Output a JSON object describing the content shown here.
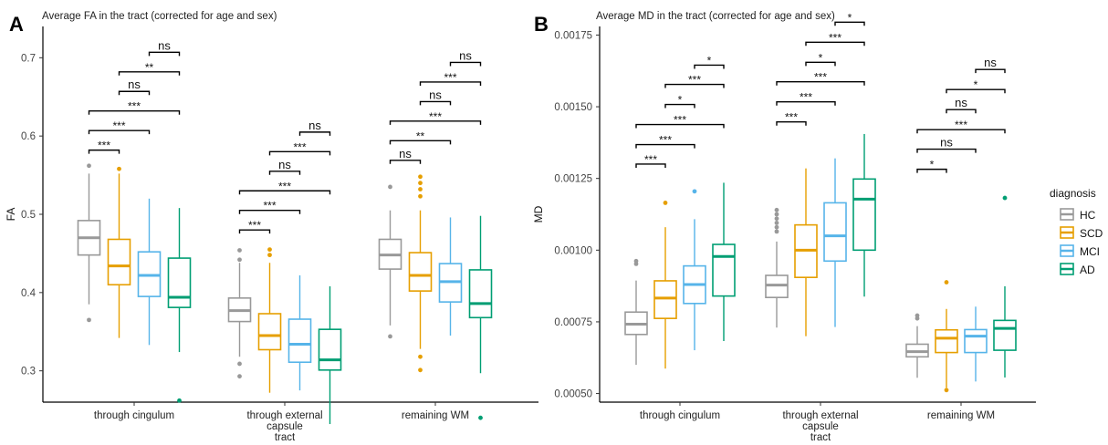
{
  "colors": {
    "HC": "#999999",
    "SCD": "#E69F00",
    "MCI": "#56B4E9",
    "AD": "#009E73"
  },
  "legend": {
    "title": "diagnosis",
    "entries": [
      "HC",
      "SCD",
      "MCI",
      "AD"
    ]
  },
  "chart_data": [
    {
      "type": "box",
      "panel": "A",
      "title": "Average FA in the tract (corrected for age and sex)",
      "ylabel": "FA",
      "xlabel": "",
      "ylim": [
        0.26,
        0.74
      ],
      "yticks": [
        0.3,
        0.4,
        0.5,
        0.6,
        0.7
      ],
      "ytick_labels": [
        "0.3",
        "0.4",
        "0.5",
        "0.6",
        "0.7"
      ],
      "categories": [
        [
          "through cingulum"
        ],
        [
          "through external",
          "capsule",
          "tract"
        ],
        [
          "remaining WM"
        ]
      ],
      "groups": [
        "HC",
        "SCD",
        "MCI",
        "AD"
      ],
      "boxes": [
        [
          {
            "group": "HC",
            "q1": 0.448,
            "med": 0.47,
            "q3": 0.492,
            "lo": 0.385,
            "hi": 0.552,
            "out": [
              0.562,
              0.365
            ]
          },
          {
            "group": "SCD",
            "q1": 0.41,
            "med": 0.434,
            "q3": 0.468,
            "lo": 0.342,
            "hi": 0.552,
            "out": [
              0.558
            ]
          },
          {
            "group": "MCI",
            "q1": 0.395,
            "med": 0.422,
            "q3": 0.452,
            "lo": 0.333,
            "hi": 0.52,
            "out": []
          },
          {
            "group": "AD",
            "q1": 0.381,
            "med": 0.394,
            "q3": 0.444,
            "lo": 0.324,
            "hi": 0.508,
            "out": [
              0.262
            ]
          }
        ],
        [
          {
            "group": "HC",
            "q1": 0.363,
            "med": 0.377,
            "q3": 0.393,
            "lo": 0.318,
            "hi": 0.438,
            "out": [
              0.454,
              0.442,
              0.309,
              0.293
            ]
          },
          {
            "group": "SCD",
            "q1": 0.327,
            "med": 0.345,
            "q3": 0.373,
            "lo": 0.272,
            "hi": 0.438,
            "out": [
              0.455,
              0.448
            ]
          },
          {
            "group": "MCI",
            "q1": 0.311,
            "med": 0.334,
            "q3": 0.366,
            "lo": 0.275,
            "hi": 0.422,
            "out": []
          },
          {
            "group": "AD",
            "q1": 0.301,
            "med": 0.314,
            "q3": 0.353,
            "lo": 0.232,
            "hi": 0.408,
            "out": []
          }
        ],
        [
          {
            "group": "HC",
            "q1": 0.43,
            "med": 0.448,
            "q3": 0.468,
            "lo": 0.358,
            "hi": 0.505,
            "out": [
              0.535,
              0.344
            ]
          },
          {
            "group": "SCD",
            "q1": 0.402,
            "med": 0.422,
            "q3": 0.451,
            "lo": 0.328,
            "hi": 0.505,
            "out": [
              0.548,
              0.54,
              0.532,
              0.523,
              0.318,
              0.301
            ]
          },
          {
            "group": "MCI",
            "q1": 0.388,
            "med": 0.414,
            "q3": 0.437,
            "lo": 0.345,
            "hi": 0.496,
            "out": []
          },
          {
            "group": "AD",
            "q1": 0.368,
            "med": 0.386,
            "q3": 0.429,
            "lo": 0.297,
            "hi": 0.498,
            "out": [
              0.24
            ]
          }
        ]
      ],
      "comparisons": [
        [
          {
            "from": 0,
            "to": 1,
            "label": "***",
            "y": 0.582
          },
          {
            "from": 0,
            "to": 2,
            "label": "***",
            "y": 0.607
          },
          {
            "from": 0,
            "to": 3,
            "label": "***",
            "y": 0.632
          },
          {
            "from": 1,
            "to": 2,
            "label": "ns",
            "y": 0.657
          },
          {
            "from": 1,
            "to": 3,
            "label": "**",
            "y": 0.682
          },
          {
            "from": 2,
            "to": 3,
            "label": "ns",
            "y": 0.707
          }
        ],
        [
          {
            "from": 0,
            "to": 1,
            "label": "***",
            "y": 0.48
          },
          {
            "from": 0,
            "to": 2,
            "label": "***",
            "y": 0.505
          },
          {
            "from": 0,
            "to": 3,
            "label": "***",
            "y": 0.53
          },
          {
            "from": 1,
            "to": 2,
            "label": "ns",
            "y": 0.555
          },
          {
            "from": 1,
            "to": 3,
            "label": "***",
            "y": 0.58
          },
          {
            "from": 2,
            "to": 3,
            "label": "ns",
            "y": 0.605
          }
        ],
        [
          {
            "from": 0,
            "to": 1,
            "label": "ns",
            "y": 0.569
          },
          {
            "from": 0,
            "to": 2,
            "label": "**",
            "y": 0.594
          },
          {
            "from": 0,
            "to": 3,
            "label": "***",
            "y": 0.619
          },
          {
            "from": 1,
            "to": 2,
            "label": "ns",
            "y": 0.644
          },
          {
            "from": 1,
            "to": 3,
            "label": "***",
            "y": 0.669
          },
          {
            "from": 2,
            "to": 3,
            "label": "ns",
            "y": 0.694
          }
        ]
      ]
    },
    {
      "type": "box",
      "panel": "B",
      "title": "Average MD in the tract (corrected for age and sex)",
      "ylabel": "MD",
      "xlabel": "",
      "ylim": [
        0.00047,
        0.00178
      ],
      "yticks": [
        0.0005,
        0.00075,
        0.001,
        0.00125,
        0.0015,
        0.00175
      ],
      "ytick_labels": [
        "0.00050",
        "0.00075",
        "0.00100",
        "0.00125",
        "0.00150",
        "0.00175"
      ],
      "categories": [
        [
          "through cingulum"
        ],
        [
          "through external",
          "capsule",
          "tract"
        ],
        [
          "remaining WM"
        ]
      ],
      "groups": [
        "HC",
        "SCD",
        "MCI",
        "AD"
      ],
      "boxes": [
        [
          {
            "group": "HC",
            "q1": 0.000706,
            "med": 0.000742,
            "q3": 0.000784,
            "lo": 0.0006,
            "hi": 0.000894,
            "out": [
              0.000962,
              0.000952
            ]
          },
          {
            "group": "SCD",
            "q1": 0.000762,
            "med": 0.000833,
            "q3": 0.000893,
            "lo": 0.000587,
            "hi": 0.00108,
            "out": [
              0.001165
            ]
          },
          {
            "group": "MCI",
            "q1": 0.000814,
            "med": 0.00088,
            "q3": 0.000945,
            "lo": 0.000651,
            "hi": 0.001108,
            "out": [
              0.001205
            ]
          },
          {
            "group": "AD",
            "q1": 0.00084,
            "med": 0.000978,
            "q3": 0.00102,
            "lo": 0.000683,
            "hi": 0.001235,
            "out": []
          }
        ],
        [
          {
            "group": "HC",
            "q1": 0.000835,
            "med": 0.000878,
            "q3": 0.000912,
            "lo": 0.00073,
            "hi": 0.00103,
            "out": [
              0.00114,
              0.001125,
              0.00111,
              0.001095,
              0.00108,
              0.001065
            ]
          },
          {
            "group": "SCD",
            "q1": 0.000905,
            "med": 0.001,
            "q3": 0.001088,
            "lo": 0.0007,
            "hi": 0.001285,
            "out": []
          },
          {
            "group": "MCI",
            "q1": 0.000962,
            "med": 0.00105,
            "q3": 0.001165,
            "lo": 0.000732,
            "hi": 0.00132,
            "out": []
          },
          {
            "group": "AD",
            "q1": 0.001,
            "med": 0.001178,
            "q3": 0.001248,
            "lo": 0.000838,
            "hi": 0.001405,
            "out": []
          }
        ],
        [
          {
            "group": "HC",
            "q1": 0.000628,
            "med": 0.000646,
            "q3": 0.000672,
            "lo": 0.000555,
            "hi": 0.000735,
            "out": [
              0.000772,
              0.000762
            ]
          },
          {
            "group": "SCD",
            "q1": 0.000643,
            "med": 0.000693,
            "q3": 0.000722,
            "lo": 0.00052,
            "hi": 0.000795,
            "out": [
              0.000888,
              0.000512
            ]
          },
          {
            "group": "MCI",
            "q1": 0.000643,
            "med": 0.0007,
            "q3": 0.000723,
            "lo": 0.000542,
            "hi": 0.000803,
            "out": []
          },
          {
            "group": "AD",
            "q1": 0.000651,
            "med": 0.000727,
            "q3": 0.000755,
            "lo": 0.000556,
            "hi": 0.000874,
            "out": [
              0.001182
            ]
          }
        ]
      ],
      "comparisons": [
        [
          {
            "from": 0,
            "to": 1,
            "label": "***",
            "y": 0.0013
          },
          {
            "from": 0,
            "to": 2,
            "label": "***",
            "y": 0.001368
          },
          {
            "from": 0,
            "to": 3,
            "label": "***",
            "y": 0.001438
          },
          {
            "from": 1,
            "to": 2,
            "label": "*",
            "y": 0.001508
          },
          {
            "from": 1,
            "to": 3,
            "label": "***",
            "y": 0.001578
          },
          {
            "from": 2,
            "to": 3,
            "label": "*",
            "y": 0.001645
          }
        ],
        [
          {
            "from": 0,
            "to": 1,
            "label": "***",
            "y": 0.001447
          },
          {
            "from": 0,
            "to": 2,
            "label": "***",
            "y": 0.001517
          },
          {
            "from": 0,
            "to": 3,
            "label": "***",
            "y": 0.001587
          },
          {
            "from": 1,
            "to": 2,
            "label": "*",
            "y": 0.001655
          },
          {
            "from": 1,
            "to": 3,
            "label": "***",
            "y": 0.001725
          },
          {
            "from": 2,
            "to": 3,
            "label": "*",
            "y": 0.001795
          }
        ],
        [
          {
            "from": 0,
            "to": 1,
            "label": "*",
            "y": 0.001282
          },
          {
            "from": 0,
            "to": 2,
            "label": "ns",
            "y": 0.001352
          },
          {
            "from": 0,
            "to": 3,
            "label": "***",
            "y": 0.00142
          },
          {
            "from": 1,
            "to": 2,
            "label": "ns",
            "y": 0.00149
          },
          {
            "from": 1,
            "to": 3,
            "label": "*",
            "y": 0.00156
          },
          {
            "from": 2,
            "to": 3,
            "label": "ns",
            "y": 0.00163
          }
        ]
      ]
    }
  ]
}
